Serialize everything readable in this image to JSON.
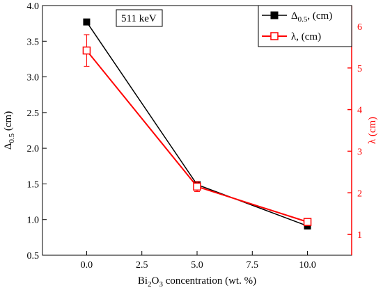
{
  "chart_data": {
    "type": "line",
    "x": [
      0.0,
      5.0,
      10.0
    ],
    "xlim": [
      -2.0,
      12.0
    ],
    "x_ticks": [
      "0.0",
      "2.5",
      "5.0",
      "7.5",
      "10.0"
    ],
    "x_tick_values": [
      0.0,
      2.5,
      5.0,
      7.5,
      10.0
    ],
    "xlabel": {
      "prefix": "Bi",
      "sub1": "2",
      "mid": "O",
      "sub2": "3",
      "suffix": " concentration (wt. %)"
    },
    "y_left": {
      "lim": [
        0.5,
        4.0
      ],
      "ticks": [
        "0.5",
        "1.0",
        "1.5",
        "2.0",
        "2.5",
        "3.0",
        "3.5",
        "4.0"
      ],
      "tick_values": [
        0.5,
        1.0,
        1.5,
        2.0,
        2.5,
        3.0,
        3.5,
        4.0
      ],
      "label_main": "Δ",
      "label_sub": "0.5",
      "label_suffix": " (cm)",
      "color": "#000000"
    },
    "y_right": {
      "lim": [
        0.5,
        6.5
      ],
      "ticks": [
        "1",
        "2",
        "3",
        "4",
        "5",
        "6"
      ],
      "tick_values": [
        1,
        2,
        3,
        4,
        5,
        6
      ],
      "label": "λ (cm)",
      "color": "#ff0000"
    },
    "series": [
      {
        "name_main": "Δ",
        "name_sub": "0.5",
        "name_suffix": ",  (cm)",
        "axis": "left",
        "marker": "filled-square",
        "color": "#000000",
        "values": [
          3.77,
          1.49,
          0.91
        ]
      },
      {
        "name": "λ, (cm)",
        "axis": "right",
        "marker": "open-square",
        "color": "#ff0000",
        "values": [
          5.42,
          2.15,
          1.3
        ],
        "errors": [
          0.38,
          0.12,
          0.05
        ]
      }
    ],
    "annotation": "511 keV",
    "legend_position": "top-right",
    "grid": false
  }
}
